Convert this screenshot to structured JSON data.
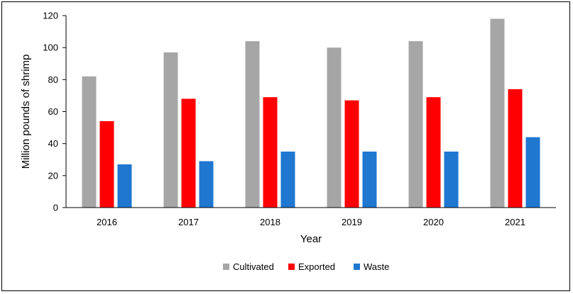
{
  "chart_data": {
    "type": "bar",
    "title": "",
    "xlabel": "Year",
    "ylabel": "Million pounds of shrimp",
    "ylim": [
      0,
      120
    ],
    "yticks": [
      0,
      20,
      40,
      60,
      80,
      100,
      120
    ],
    "categories": [
      "2016",
      "2017",
      "2018",
      "2019",
      "2020",
      "2021"
    ],
    "series": [
      {
        "name": "Cultivated",
        "color": "#a6a6a6",
        "values": [
          82,
          97,
          104,
          100,
          104,
          118
        ]
      },
      {
        "name": "Exported",
        "color": "#ff0000",
        "values": [
          54,
          68,
          69,
          67,
          69,
          74
        ]
      },
      {
        "name": "Waste",
        "color": "#1f77d0",
        "values": [
          27,
          29,
          35,
          35,
          35,
          44
        ]
      }
    ],
    "grid": false,
    "legend_position": "bottom"
  }
}
